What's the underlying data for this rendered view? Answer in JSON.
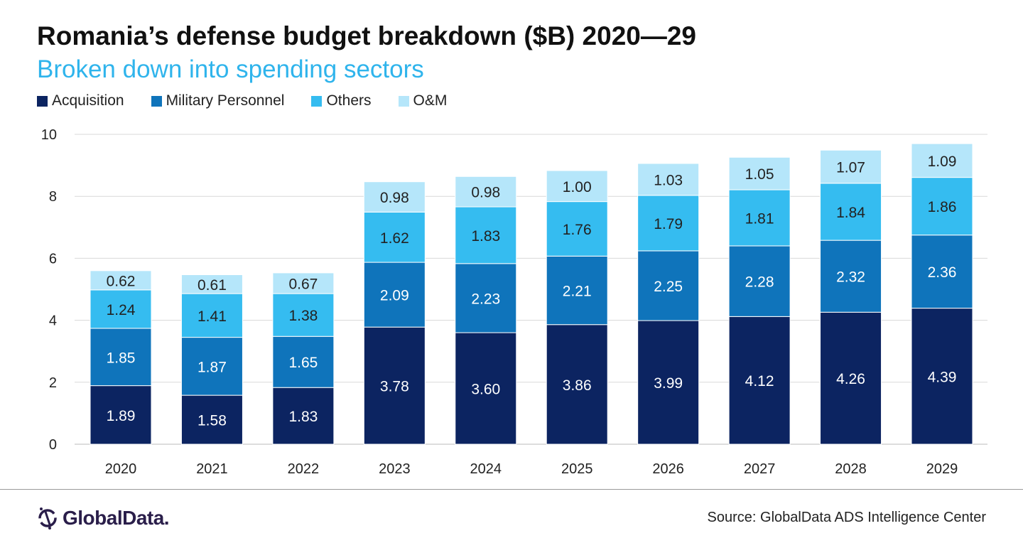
{
  "chart_data": {
    "type": "bar",
    "stacked": true,
    "title": "Romania’s defense budget breakdown ($B) 2020—29",
    "subtitle": "Broken down into spending sectors",
    "xlabel": "",
    "ylabel": "",
    "ylim": [
      0,
      10
    ],
    "yticks": [
      0,
      2,
      4,
      6,
      8,
      10
    ],
    "grid": true,
    "legend_position": "top-left",
    "categories": [
      "2020",
      "2021",
      "2022",
      "2023",
      "2024",
      "2025",
      "2026",
      "2027",
      "2028",
      "2029"
    ],
    "series": [
      {
        "name": "Acquisition",
        "color": "#0c2461",
        "values": [
          1.89,
          1.58,
          1.83,
          3.78,
          3.6,
          3.86,
          3.99,
          4.12,
          4.26,
          4.39
        ]
      },
      {
        "name": "Military Personnel",
        "color": "#0f74bb",
        "values": [
          1.85,
          1.87,
          1.65,
          2.09,
          2.23,
          2.21,
          2.25,
          2.28,
          2.32,
          2.36
        ]
      },
      {
        "name": "Others",
        "color": "#35bcf0",
        "values": [
          1.24,
          1.41,
          1.38,
          1.62,
          1.83,
          1.76,
          1.79,
          1.81,
          1.84,
          1.86
        ]
      },
      {
        "name": "O&M",
        "color": "#b5e6fa",
        "values": [
          0.62,
          0.61,
          0.67,
          0.98,
          0.98,
          1.0,
          1.03,
          1.05,
          1.07,
          1.09
        ]
      }
    ]
  },
  "footer": {
    "logo_text": "GlobalData.",
    "source": "Source: GlobalData ADS Intelligence Center"
  }
}
